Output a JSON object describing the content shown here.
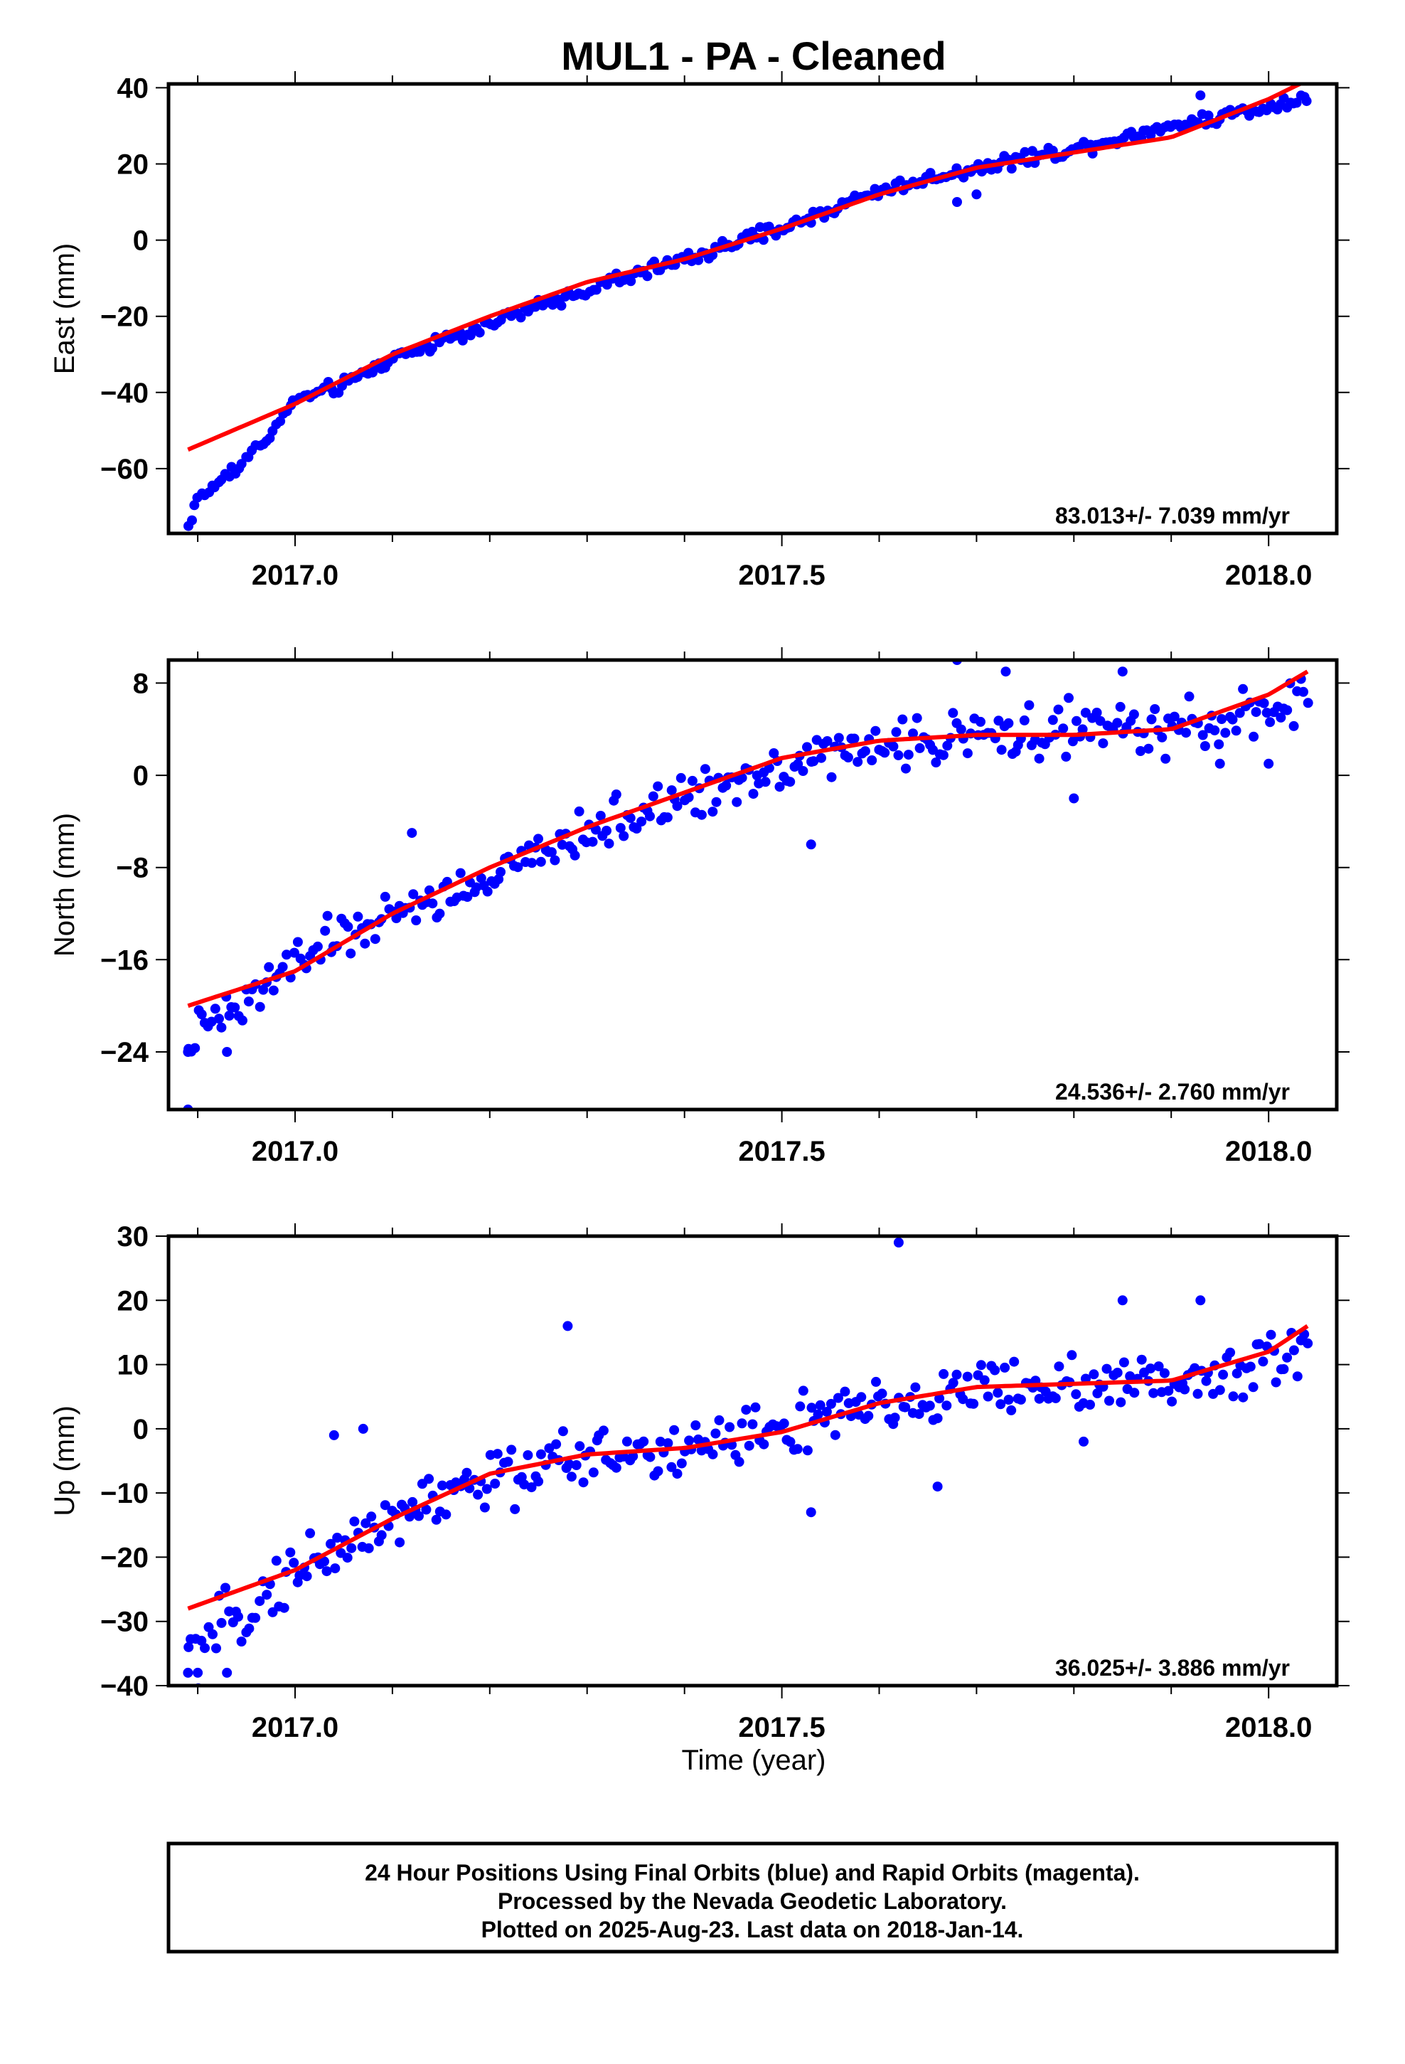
{
  "title": "MUL1  - PA - Cleaned",
  "xlabel": "Time (year)",
  "colors": {
    "final_orbits": "#0000ff",
    "fit_line": "#ff0000",
    "frame": "#000000"
  },
  "footer": {
    "line1": "24 Hour Positions Using Final Orbits (blue) and Rapid Orbits (magenta).",
    "line2": "Processed by the Nevada Geodetic Laboratory.",
    "line3": "Plotted on 2025-Aug-23. Last data on 2018-Jan-14."
  },
  "chart_data": [
    {
      "type": "scatter",
      "component": "east",
      "ylabel": "East (mm)",
      "rate": "83.013+/- 7.039 mm/yr",
      "xlim": [
        2016.87,
        2018.07
      ],
      "ylim": [
        -77,
        41
      ],
      "xticks": [
        "2017.0",
        "2017.5",
        "2018.0"
      ],
      "yticks": [
        "40",
        "20",
        "0",
        "−20",
        "−40",
        "−60"
      ],
      "data_x_range": [
        2016.89,
        2018.04
      ],
      "anchors": [
        [
          2016.89,
          -75
        ],
        [
          2016.9,
          -68
        ],
        [
          2016.93,
          -62
        ],
        [
          2016.96,
          -55
        ],
        [
          2016.98,
          -49
        ],
        [
          2017.0,
          -42
        ],
        [
          2017.05,
          -38
        ],
        [
          2017.1,
          -31
        ],
        [
          2017.2,
          -22
        ],
        [
          2017.3,
          -13
        ],
        [
          2017.4,
          -5
        ],
        [
          2017.5,
          3
        ],
        [
          2017.6,
          13
        ],
        [
          2017.7,
          19
        ],
        [
          2017.8,
          24
        ],
        [
          2017.9,
          30
        ],
        [
          2018.0,
          35
        ],
        [
          2018.04,
          38
        ]
      ],
      "noise": 1.3,
      "outliers": [
        [
          2017.68,
          10
        ],
        [
          2017.7,
          12
        ],
        [
          2017.93,
          38
        ]
      ],
      "fit": [
        [
          2016.89,
          -55
        ],
        [
          2017.0,
          -43
        ],
        [
          2017.1,
          -30
        ],
        [
          2017.2,
          -20
        ],
        [
          2017.3,
          -11
        ],
        [
          2017.4,
          -5
        ],
        [
          2017.5,
          3
        ],
        [
          2017.6,
          12
        ],
        [
          2017.7,
          19
        ],
        [
          2017.8,
          23
        ],
        [
          2017.9,
          27
        ],
        [
          2018.0,
          37
        ],
        [
          2018.04,
          42
        ]
      ]
    },
    {
      "type": "scatter",
      "component": "north",
      "ylabel": "North (mm)",
      "rate": "24.536+/- 2.760 mm/yr",
      "xlim": [
        2016.87,
        2018.07
      ],
      "ylim": [
        -29,
        10
      ],
      "xticks": [
        "2017.0",
        "2017.5",
        "2018.0"
      ],
      "yticks": [
        "8",
        "0",
        "−8",
        "−16",
        "−24"
      ],
      "data_x_range": [
        2016.89,
        2018.04
      ],
      "anchors": [
        [
          2016.89,
          -23
        ],
        [
          2016.95,
          -20
        ],
        [
          2017.0,
          -16
        ],
        [
          2017.1,
          -12
        ],
        [
          2017.2,
          -9
        ],
        [
          2017.3,
          -5
        ],
        [
          2017.4,
          -2
        ],
        [
          2017.5,
          1
        ],
        [
          2017.6,
          2.5
        ],
        [
          2017.7,
          3.5
        ],
        [
          2017.8,
          4
        ],
        [
          2017.9,
          4
        ],
        [
          2018.0,
          5.5
        ],
        [
          2018.04,
          6
        ]
      ],
      "noise": 1.4,
      "outliers": [
        [
          2016.89,
          -29
        ],
        [
          2016.89,
          -24
        ],
        [
          2016.93,
          -24
        ],
        [
          2017.12,
          -5
        ],
        [
          2017.53,
          -6
        ],
        [
          2017.68,
          10
        ],
        [
          2017.73,
          9
        ],
        [
          2017.85,
          9
        ],
        [
          2017.8,
          -2
        ],
        [
          2018.0,
          1
        ],
        [
          2017.95,
          1
        ]
      ],
      "fit": [
        [
          2016.89,
          -20
        ],
        [
          2017.0,
          -17
        ],
        [
          2017.1,
          -12
        ],
        [
          2017.2,
          -8
        ],
        [
          2017.3,
          -4.5
        ],
        [
          2017.4,
          -1.5
        ],
        [
          2017.5,
          1.5
        ],
        [
          2017.6,
          3
        ],
        [
          2017.7,
          3.5
        ],
        [
          2017.8,
          3.5
        ],
        [
          2017.9,
          4
        ],
        [
          2018.0,
          7
        ],
        [
          2018.04,
          9
        ]
      ]
    },
    {
      "type": "scatter",
      "component": "up",
      "ylabel": "Up (mm)",
      "rate": "36.025+/- 3.886 mm/yr",
      "xlim": [
        2016.87,
        2018.07
      ],
      "ylim": [
        -40,
        30
      ],
      "xticks": [
        "2017.0",
        "2017.5",
        "2018.0"
      ],
      "yticks": [
        "30",
        "20",
        "10",
        "0",
        "−10",
        "−20",
        "−30",
        "−40"
      ],
      "data_x_range": [
        2016.89,
        2018.04
      ],
      "anchors": [
        [
          2016.89,
          -36
        ],
        [
          2016.95,
          -28
        ],
        [
          2017.0,
          -22
        ],
        [
          2017.1,
          -14
        ],
        [
          2017.2,
          -8
        ],
        [
          2017.3,
          -4
        ],
        [
          2017.4,
          -3
        ],
        [
          2017.5,
          0
        ],
        [
          2017.6,
          3
        ],
        [
          2017.7,
          6
        ],
        [
          2017.8,
          7
        ],
        [
          2017.9,
          7
        ],
        [
          2018.0,
          11
        ],
        [
          2018.04,
          13
        ]
      ],
      "noise": 3.3,
      "outliers": [
        [
          2016.89,
          -38
        ],
        [
          2016.9,
          -38
        ],
        [
          2016.93,
          -38
        ],
        [
          2017.04,
          -1
        ],
        [
          2017.07,
          0
        ],
        [
          2017.28,
          16
        ],
        [
          2017.53,
          -13
        ],
        [
          2017.62,
          29
        ],
        [
          2017.66,
          -9
        ],
        [
          2017.85,
          20
        ],
        [
          2017.93,
          20
        ],
        [
          2017.81,
          -2
        ]
      ],
      "fit": [
        [
          2016.89,
          -28
        ],
        [
          2017.0,
          -22
        ],
        [
          2017.1,
          -14
        ],
        [
          2017.2,
          -7
        ],
        [
          2017.3,
          -4
        ],
        [
          2017.4,
          -3
        ],
        [
          2017.5,
          -0.5
        ],
        [
          2017.6,
          4
        ],
        [
          2017.7,
          6.5
        ],
        [
          2017.8,
          7
        ],
        [
          2017.9,
          7.5
        ],
        [
          2018.0,
          12
        ],
        [
          2018.04,
          16
        ]
      ]
    }
  ]
}
